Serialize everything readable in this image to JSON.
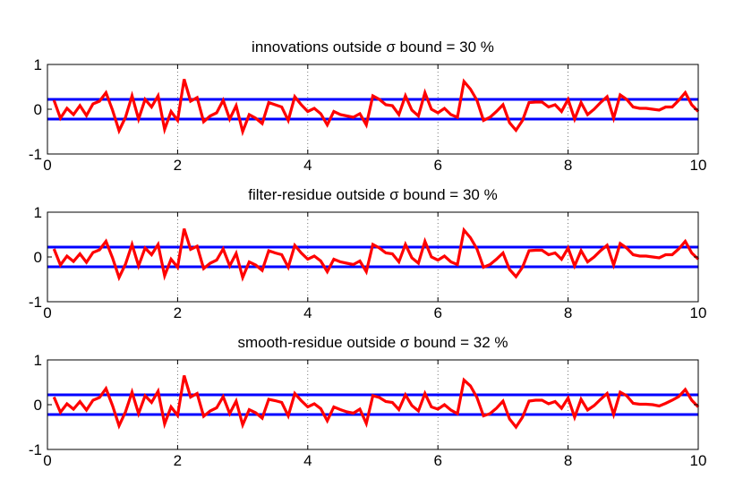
{
  "chart_data": [
    {
      "type": "line",
      "title": "innovations outside σ bound = 30 %",
      "xlabel": "",
      "ylabel": "",
      "xlim": [
        0,
        10
      ],
      "ylim": [
        -1,
        1
      ],
      "xticks": [
        "0",
        "2",
        "4",
        "6",
        "8",
        "10"
      ],
      "yticks": [
        "-1",
        "0",
        "1"
      ],
      "grid": "x-dotted",
      "bounds": {
        "upper": 0.22,
        "lower": -0.22,
        "color": "#0000ff"
      },
      "series": [
        {
          "color": "#ff0000",
          "x": [
            0.1,
            0.2,
            0.3,
            0.4,
            0.5,
            0.6,
            0.7,
            0.8,
            0.9,
            1.0,
            1.1,
            1.2,
            1.3,
            1.4,
            1.5,
            1.6,
            1.7,
            1.8,
            1.9,
            2.0,
            2.1,
            2.2,
            2.3,
            2.4,
            2.5,
            2.6,
            2.7,
            2.8,
            2.9,
            3.0,
            3.1,
            3.2,
            3.3,
            3.4,
            3.5,
            3.6,
            3.7,
            3.8,
            3.9,
            4.0,
            4.1,
            4.2,
            4.3,
            4.4,
            4.5,
            4.6,
            4.7,
            4.8,
            4.9,
            5.0,
            5.1,
            5.2,
            5.3,
            5.4,
            5.5,
            5.6,
            5.7,
            5.8,
            5.9,
            6.0,
            6.1,
            6.2,
            6.3,
            6.4,
            6.5,
            6.6,
            6.7,
            6.8,
            6.9,
            7.0,
            7.1,
            7.2,
            7.3,
            7.4,
            7.5,
            7.6,
            7.7,
            7.8,
            7.9,
            8.0,
            8.1,
            8.2,
            8.3,
            8.4,
            8.5,
            8.6,
            8.7,
            8.8,
            8.9,
            9.0,
            9.1,
            9.2,
            9.3,
            9.4,
            9.5,
            9.6,
            9.7,
            9.8,
            9.9,
            10.0
          ],
          "y": [
            0.2,
            -0.2,
            0.02,
            -0.12,
            0.08,
            -0.14,
            0.12,
            0.18,
            0.37,
            -0.02,
            -0.48,
            -0.18,
            0.3,
            -0.22,
            0.22,
            0.05,
            0.3,
            -0.45,
            -0.05,
            -0.25,
            0.67,
            0.18,
            0.26,
            -0.28,
            -0.15,
            -0.08,
            0.2,
            -0.22,
            0.08,
            -0.5,
            -0.12,
            -0.2,
            -0.32,
            0.15,
            0.1,
            0.05,
            -0.25,
            0.28,
            0.1,
            -0.05,
            0.02,
            -0.1,
            -0.35,
            -0.05,
            -0.12,
            -0.15,
            -0.18,
            -0.1,
            -0.35,
            0.3,
            0.22,
            0.1,
            0.08,
            -0.12,
            0.3,
            -0.02,
            -0.15,
            0.37,
            0.0,
            -0.08,
            0.02,
            -0.12,
            -0.18,
            0.62,
            0.45,
            0.2,
            -0.25,
            -0.18,
            -0.05,
            0.1,
            -0.3,
            -0.47,
            -0.25,
            0.15,
            0.16,
            0.16,
            0.05,
            0.1,
            -0.05,
            0.22,
            -0.22,
            0.15,
            -0.12,
            0.0,
            0.15,
            0.28,
            -0.2,
            0.32,
            0.22,
            0.05,
            0.02,
            0.02,
            0.0,
            -0.02,
            0.05,
            0.05,
            0.2,
            0.37,
            0.1,
            -0.05
          ]
        }
      ]
    },
    {
      "type": "line",
      "title": "filter-residue outside σ bound = 30 %",
      "xlabel": "",
      "ylabel": "",
      "xlim": [
        0,
        10
      ],
      "ylim": [
        -1,
        1
      ],
      "xticks": [
        "0",
        "2",
        "4",
        "6",
        "8",
        "10"
      ],
      "yticks": [
        "-1",
        "0",
        "1"
      ],
      "grid": "x-dotted",
      "bounds": {
        "upper": 0.22,
        "lower": -0.22,
        "color": "#0000ff"
      },
      "series": [
        {
          "color": "#ff0000",
          "x": [
            0.1,
            0.2,
            0.3,
            0.4,
            0.5,
            0.6,
            0.7,
            0.8,
            0.9,
            1.0,
            1.1,
            1.2,
            1.3,
            1.4,
            1.5,
            1.6,
            1.7,
            1.8,
            1.9,
            2.0,
            2.1,
            2.2,
            2.3,
            2.4,
            2.5,
            2.6,
            2.7,
            2.8,
            2.9,
            3.0,
            3.1,
            3.2,
            3.3,
            3.4,
            3.5,
            3.6,
            3.7,
            3.8,
            3.9,
            4.0,
            4.1,
            4.2,
            4.3,
            4.4,
            4.5,
            4.6,
            4.7,
            4.8,
            4.9,
            5.0,
            5.1,
            5.2,
            5.3,
            5.4,
            5.5,
            5.6,
            5.7,
            5.8,
            5.9,
            6.0,
            6.1,
            6.2,
            6.3,
            6.4,
            6.5,
            6.6,
            6.7,
            6.8,
            6.9,
            7.0,
            7.1,
            7.2,
            7.3,
            7.4,
            7.5,
            7.6,
            7.7,
            7.8,
            7.9,
            8.0,
            8.1,
            8.2,
            8.3,
            8.4,
            8.5,
            8.6,
            8.7,
            8.8,
            8.9,
            9.0,
            9.1,
            9.2,
            9.3,
            9.4,
            9.5,
            9.6,
            9.7,
            9.8,
            9.9,
            10.0
          ],
          "y": [
            0.18,
            -0.18,
            0.02,
            -0.1,
            0.07,
            -0.12,
            0.1,
            0.16,
            0.35,
            -0.02,
            -0.46,
            -0.16,
            0.28,
            -0.2,
            0.2,
            0.05,
            0.28,
            -0.42,
            -0.05,
            -0.23,
            0.63,
            0.17,
            0.24,
            -0.26,
            -0.14,
            -0.07,
            0.18,
            -0.2,
            0.08,
            -0.46,
            -0.11,
            -0.18,
            -0.3,
            0.14,
            0.09,
            0.05,
            -0.23,
            0.26,
            0.09,
            -0.05,
            0.02,
            -0.09,
            -0.33,
            -0.05,
            -0.11,
            -0.14,
            -0.17,
            -0.09,
            -0.33,
            0.28,
            0.2,
            0.09,
            0.07,
            -0.11,
            0.28,
            -0.02,
            -0.14,
            0.35,
            0.0,
            -0.07,
            0.02,
            -0.11,
            -0.17,
            0.6,
            0.43,
            0.18,
            -0.23,
            -0.17,
            -0.05,
            0.09,
            -0.28,
            -0.44,
            -0.23,
            0.14,
            0.15,
            0.15,
            0.05,
            0.09,
            -0.05,
            0.2,
            -0.2,
            0.14,
            -0.11,
            0.0,
            0.14,
            0.26,
            -0.18,
            0.3,
            0.2,
            0.05,
            0.02,
            0.02,
            0.0,
            -0.02,
            0.05,
            0.05,
            0.18,
            0.35,
            0.09,
            -0.05
          ]
        }
      ]
    },
    {
      "type": "line",
      "title": "smooth-residue outside σ bound = 32 %",
      "xlabel": "",
      "ylabel": "",
      "xlim": [
        0,
        10
      ],
      "ylim": [
        -1,
        1
      ],
      "xticks": [
        "0",
        "2",
        "4",
        "6",
        "8",
        "10"
      ],
      "yticks": [
        "-1",
        "0",
        "1"
      ],
      "grid": "x-dotted",
      "bounds": {
        "upper": 0.22,
        "lower": -0.22,
        "color": "#0000ff"
      },
      "series": [
        {
          "color": "#ff0000",
          "x": [
            0.1,
            0.2,
            0.3,
            0.4,
            0.5,
            0.6,
            0.7,
            0.8,
            0.9,
            1.0,
            1.1,
            1.2,
            1.3,
            1.4,
            1.5,
            1.6,
            1.7,
            1.8,
            1.9,
            2.0,
            2.1,
            2.2,
            2.3,
            2.4,
            2.5,
            2.6,
            2.7,
            2.8,
            2.9,
            3.0,
            3.1,
            3.2,
            3.3,
            3.4,
            3.5,
            3.6,
            3.7,
            3.8,
            3.9,
            4.0,
            4.1,
            4.2,
            4.3,
            4.4,
            4.5,
            4.6,
            4.7,
            4.8,
            4.9,
            5.0,
            5.1,
            5.2,
            5.3,
            5.4,
            5.5,
            5.6,
            5.7,
            5.8,
            5.9,
            6.0,
            6.1,
            6.2,
            6.3,
            6.4,
            6.5,
            6.6,
            6.7,
            6.8,
            6.9,
            7.0,
            7.1,
            7.2,
            7.3,
            7.4,
            7.5,
            7.6,
            7.7,
            7.8,
            7.9,
            8.0,
            8.1,
            8.2,
            8.3,
            8.4,
            8.5,
            8.6,
            8.7,
            8.8,
            8.9,
            9.0,
            9.1,
            9.2,
            9.3,
            9.4,
            9.5,
            9.6,
            9.7,
            9.8,
            9.9,
            10.0
          ],
          "y": [
            0.17,
            -0.17,
            0.02,
            -0.1,
            0.07,
            -0.12,
            0.1,
            0.16,
            0.36,
            -0.02,
            -0.47,
            -0.16,
            0.28,
            -0.2,
            0.2,
            0.05,
            0.3,
            -0.43,
            -0.05,
            -0.24,
            0.65,
            0.17,
            0.25,
            -0.26,
            -0.14,
            -0.07,
            0.18,
            -0.2,
            0.08,
            -0.45,
            -0.11,
            -0.18,
            -0.3,
            0.12,
            0.09,
            0.05,
            -0.25,
            0.25,
            0.09,
            -0.05,
            0.02,
            -0.09,
            -0.36,
            -0.05,
            -0.11,
            -0.16,
            -0.19,
            -0.1,
            -0.42,
            0.2,
            0.16,
            0.07,
            0.05,
            -0.11,
            0.22,
            -0.02,
            -0.14,
            0.25,
            -0.05,
            -0.1,
            0.0,
            -0.12,
            -0.2,
            0.55,
            0.42,
            0.16,
            -0.25,
            -0.2,
            -0.08,
            0.08,
            -0.32,
            -0.5,
            -0.28,
            0.08,
            0.1,
            0.1,
            0.02,
            0.07,
            -0.08,
            0.15,
            -0.28,
            0.12,
            -0.12,
            -0.02,
            0.12,
            0.25,
            -0.22,
            0.28,
            0.2,
            0.03,
            0.01,
            0.01,
            0.0,
            -0.03,
            0.03,
            0.1,
            0.18,
            0.34,
            0.1,
            -0.05
          ]
        }
      ]
    }
  ]
}
